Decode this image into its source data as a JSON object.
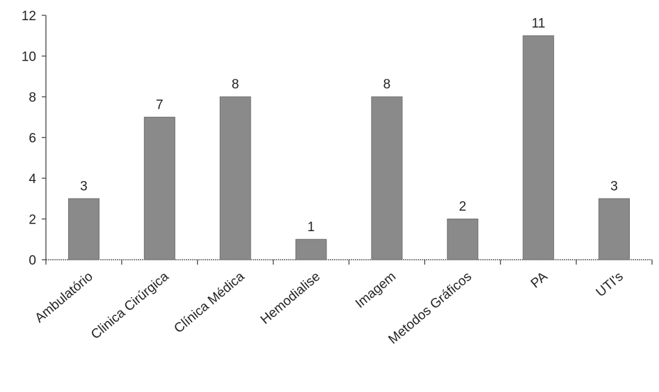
{
  "chart_data": {
    "type": "bar",
    "title": "",
    "xlabel": "",
    "ylabel": "",
    "ylim": [
      0,
      12
    ],
    "yticks": [
      0,
      2,
      4,
      6,
      8,
      10,
      12
    ],
    "grid": false,
    "categories": [
      "Ambulatório",
      "Clinica Cirúrgica",
      "Clínica Médica",
      "Hemodialise",
      "Imagem",
      "Metodos Gráficos",
      "PA",
      "UTI's"
    ],
    "values": [
      3,
      7,
      8,
      1,
      8,
      2,
      11,
      3
    ],
    "data_labels": [
      "3",
      "7",
      "8",
      "1",
      "8",
      "2",
      "11",
      "3"
    ],
    "colors": {
      "bar": "#8a8a8a",
      "bar_edge": "#6f6f6f",
      "axis": "#444444"
    }
  }
}
